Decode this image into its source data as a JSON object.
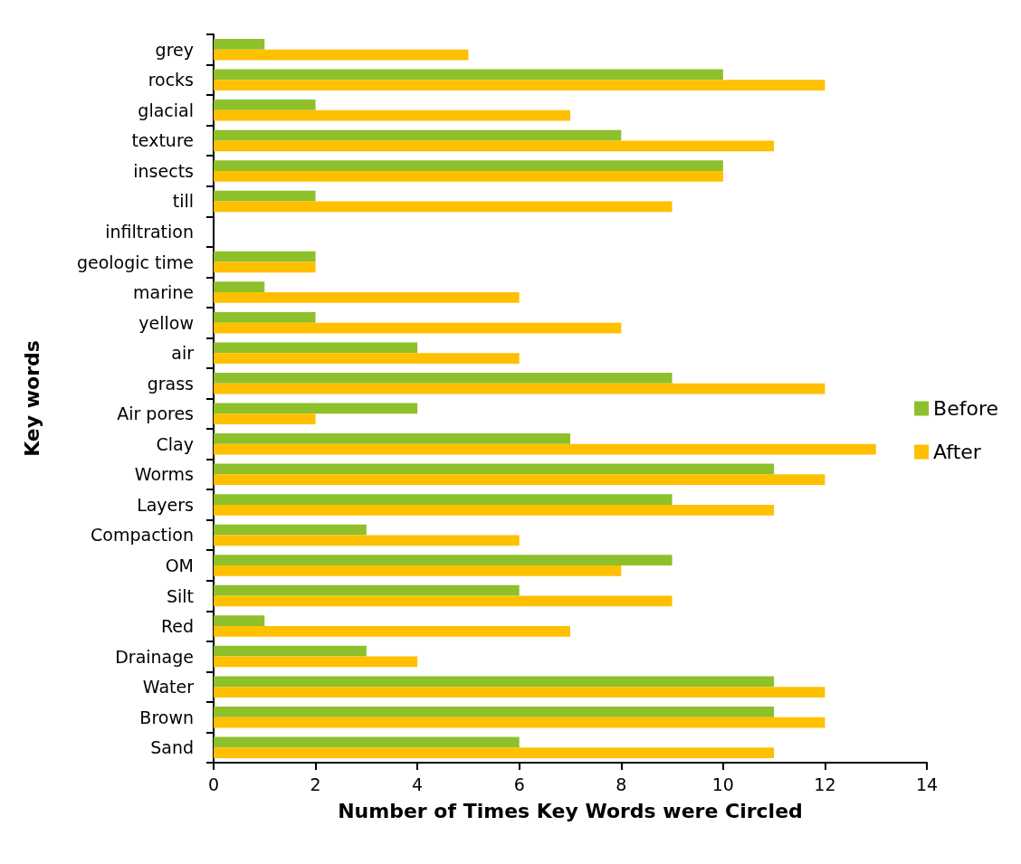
{
  "chart_data": {
    "type": "bar",
    "orientation": "horizontal",
    "xlabel": "Number of Times Key Words were Circled",
    "ylabel": "Key words",
    "categories": [
      "grey",
      "rocks",
      "glacial",
      "texture",
      "insects",
      "till",
      "infiltration",
      "geologic time",
      "marine",
      "yellow",
      "air",
      "grass",
      "Air pores",
      "Clay",
      "Worms",
      "Layers",
      "Compaction",
      "OM",
      "Silt",
      "Red",
      "Drainage",
      "Water",
      "Brown",
      "Sand"
    ],
    "series": [
      {
        "name": "Before",
        "color": "#8dc02a",
        "values": [
          1,
          10,
          2,
          8,
          10,
          2,
          0,
          2,
          1,
          2,
          4,
          9,
          4,
          7,
          11,
          9,
          3,
          9,
          6,
          1,
          3,
          11,
          11,
          6
        ]
      },
      {
        "name": "After",
        "color": "#ffc000",
        "values": [
          5,
          12,
          7,
          11,
          10,
          9,
          0,
          2,
          6,
          8,
          6,
          12,
          2,
          13,
          12,
          11,
          6,
          8,
          9,
          7,
          4,
          12,
          12,
          11
        ]
      }
    ],
    "xlim": [
      0,
      14
    ],
    "xticks": [
      0,
      2,
      4,
      6,
      8,
      10,
      12,
      14
    ],
    "grid": false,
    "legend": "right"
  }
}
